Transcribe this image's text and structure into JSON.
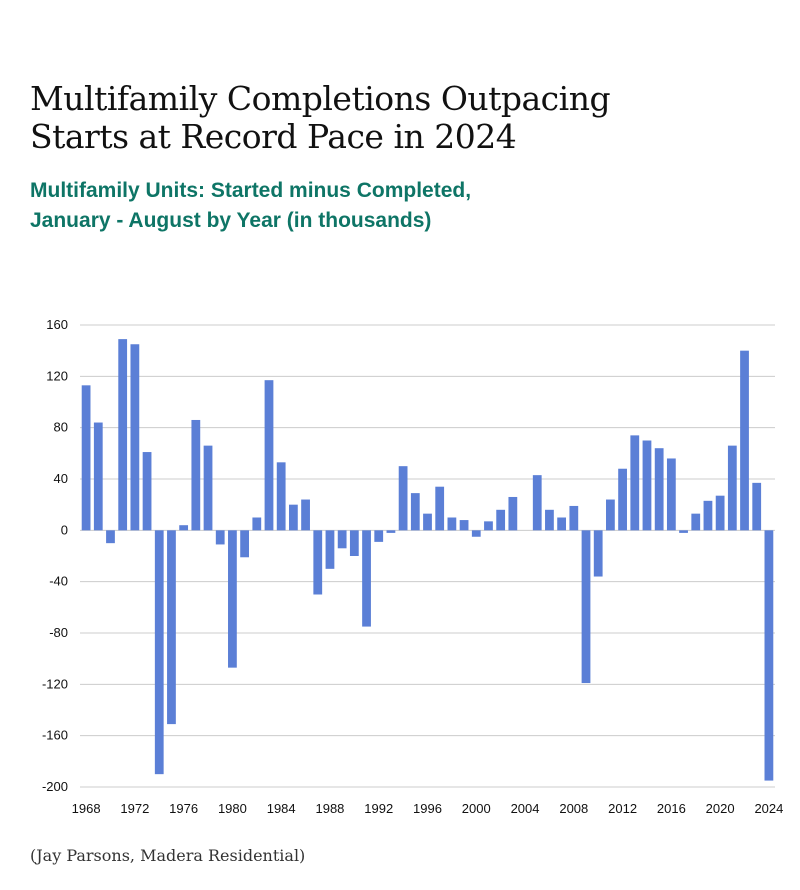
{
  "title_lines": [
    "Multifamily Completions Outpacing",
    "Starts at Record Pace in 2024"
  ],
  "subtitle_lines": [
    "Multifamily Units: Started minus Completed,",
    "January - August by Year (in thousands)"
  ],
  "source": "(Jay Parsons, Madera Residential)",
  "colors": {
    "bar": "#5b7fd6",
    "subtitle": "#0e7566",
    "grid": "#cccccc"
  },
  "chart_data": {
    "type": "bar",
    "title": "Multifamily Completions Outpacing Starts at Record Pace in 2024",
    "subtitle": "Multifamily Units: Started minus Completed, January - August by Year (in thousands)",
    "xlabel": "",
    "ylabel": "",
    "ylim": [
      -200,
      160
    ],
    "yticks": [
      160,
      120,
      80,
      40,
      0,
      -40,
      -80,
      -120,
      -160,
      -200
    ],
    "xticks": [
      "1968",
      "1972",
      "1976",
      "1980",
      "1984",
      "1988",
      "1992",
      "1996",
      "2000",
      "2004",
      "2008",
      "2012",
      "2016",
      "2020",
      "2024"
    ],
    "grid": true,
    "categories": [
      "1968",
      "1969",
      "1970",
      "1971",
      "1972",
      "1973",
      "1974",
      "1975",
      "1976",
      "1977",
      "1978",
      "1979",
      "1980",
      "1981",
      "1982",
      "1983",
      "1984",
      "1985",
      "1986",
      "1987",
      "1988",
      "1989",
      "1990",
      "1991",
      "1992",
      "1993",
      "1994",
      "1995",
      "1996",
      "1997",
      "1998",
      "1999",
      "2000",
      "2001",
      "2002",
      "2003",
      "2004",
      "2005",
      "2006",
      "2007",
      "2008",
      "2009",
      "2010",
      "2011",
      "2012",
      "2013",
      "2014",
      "2015",
      "2016",
      "2017",
      "2018",
      "2019",
      "2020",
      "2021",
      "2022",
      "2023",
      "2024"
    ],
    "values": [
      113,
      84,
      -10,
      149,
      145,
      61,
      -190,
      -151,
      4,
      86,
      66,
      -11,
      -107,
      -21,
      10,
      117,
      53,
      20,
      24,
      -50,
      -30,
      -14,
      -20,
      -75,
      -9,
      -2,
      50,
      29,
      13,
      34,
      10,
      8,
      -5,
      7,
      16,
      26,
      0,
      43,
      16,
      10,
      19,
      -119,
      -36,
      24,
      48,
      74,
      70,
      64,
      56,
      -2,
      13,
      23,
      27,
      66,
      140,
      37,
      -195
    ]
  }
}
